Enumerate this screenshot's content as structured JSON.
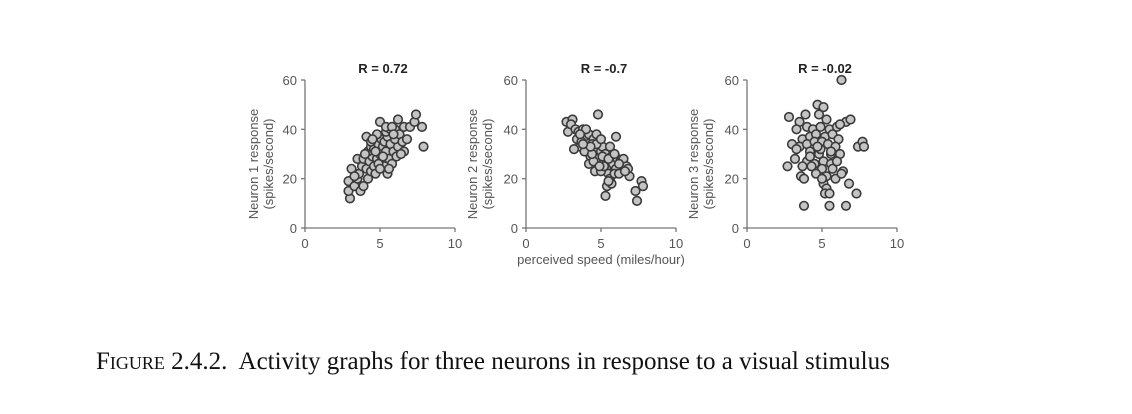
{
  "caption": {
    "figure_label": "Figure 2.4.2.",
    "text": "Activity graphs for three neurons in response to a visual stimulus"
  },
  "colors": {
    "point_fill": "#c4c4c4",
    "point_stroke": "#3a3a3a",
    "axis": "#777777",
    "tick_text": "#555555",
    "title_text": "#222222"
  },
  "chart_data": [
    {
      "type": "scatter",
      "title": "R = 0.72",
      "xlabel": "",
      "ylabel": "Neuron 1 response",
      "ylabel_units": "(spikes/second)",
      "xlim": [
        0,
        10
      ],
      "ylim": [
        0,
        60
      ],
      "xticks": [
        0,
        5,
        10
      ],
      "yticks": [
        0,
        20,
        40,
        60
      ],
      "grid": false,
      "points": [
        [
          3.0,
          12
        ],
        [
          2.9,
          15
        ],
        [
          2.9,
          19
        ],
        [
          3.3,
          17
        ],
        [
          3.5,
          20
        ],
        [
          3.7,
          15
        ],
        [
          3.9,
          17
        ],
        [
          3.1,
          24
        ],
        [
          3.6,
          22
        ],
        [
          3.8,
          25
        ],
        [
          3.5,
          28
        ],
        [
          3.9,
          28
        ],
        [
          4.2,
          20
        ],
        [
          4.1,
          24
        ],
        [
          4.3,
          27
        ],
        [
          4.4,
          23
        ],
        [
          4.6,
          25
        ],
        [
          4.5,
          29
        ],
        [
          4.7,
          22
        ],
        [
          4.8,
          28
        ],
        [
          4.2,
          31
        ],
        [
          4.4,
          33
        ],
        [
          4.6,
          32
        ],
        [
          4.9,
          34
        ],
        [
          5.0,
          30
        ],
        [
          5.1,
          27
        ],
        [
          5.3,
          25
        ],
        [
          5.5,
          22
        ],
        [
          5.2,
          33
        ],
        [
          5.4,
          31
        ],
        [
          5.6,
          28
        ],
        [
          5.8,
          26
        ],
        [
          5.1,
          36
        ],
        [
          5.3,
          35
        ],
        [
          5.5,
          37
        ],
        [
          5.7,
          34
        ],
        [
          5.9,
          31
        ],
        [
          6.1,
          29
        ],
        [
          6.2,
          33
        ],
        [
          6.0,
          36
        ],
        [
          5.4,
          39
        ],
        [
          5.7,
          40
        ],
        [
          6.0,
          40
        ],
        [
          6.3,
          38
        ],
        [
          6.5,
          35
        ],
        [
          6.6,
          31
        ],
        [
          5.0,
          43
        ],
        [
          5.4,
          41
        ],
        [
          5.8,
          41
        ],
        [
          6.2,
          44
        ],
        [
          6.6,
          41
        ],
        [
          7.0,
          41
        ],
        [
          7.3,
          43
        ],
        [
          7.4,
          46
        ],
        [
          7.8,
          41
        ],
        [
          7.9,
          33
        ],
        [
          4.1,
          37
        ],
        [
          4.4,
          35
        ],
        [
          4.8,
          38
        ],
        [
          5.2,
          29
        ],
        [
          4.0,
          30
        ],
        [
          4.7,
          31
        ],
        [
          5.6,
          24
        ],
        [
          6.4,
          30
        ],
        [
          3.3,
          21
        ],
        [
          4.9,
          26
        ],
        [
          5.9,
          38
        ],
        [
          6.8,
          36
        ],
        [
          4.5,
          36
        ],
        [
          5.0,
          24
        ]
      ]
    },
    {
      "type": "scatter",
      "title": "R = -0.7",
      "xlabel": "perceived speed (miles/hour)",
      "ylabel": "Neuron 2 response",
      "ylabel_units": "(spikes/second)",
      "xlim": [
        0,
        10
      ],
      "ylim": [
        0,
        60
      ],
      "xticks": [
        0,
        5,
        10
      ],
      "yticks": [
        0,
        20,
        40,
        60
      ],
      "grid": false,
      "points": [
        [
          2.7,
          43
        ],
        [
          2.8,
          39
        ],
        [
          3.1,
          44
        ],
        [
          3.0,
          42
        ],
        [
          3.3,
          40
        ],
        [
          3.5,
          39
        ],
        [
          3.4,
          36
        ],
        [
          3.6,
          33
        ],
        [
          3.2,
          32
        ],
        [
          3.8,
          40
        ],
        [
          3.9,
          37
        ],
        [
          3.7,
          35
        ],
        [
          4.0,
          33
        ],
        [
          4.2,
          38
        ],
        [
          4.1,
          31
        ],
        [
          4.3,
          29
        ],
        [
          4.5,
          36
        ],
        [
          4.4,
          34
        ],
        [
          4.6,
          32
        ],
        [
          4.2,
          26
        ],
        [
          4.8,
          46
        ],
        [
          4.7,
          38
        ],
        [
          4.9,
          35
        ],
        [
          5.0,
          31
        ],
        [
          4.8,
          28
        ],
        [
          4.6,
          23
        ],
        [
          5.1,
          33
        ],
        [
          5.3,
          30
        ],
        [
          5.2,
          27
        ],
        [
          5.4,
          25
        ],
        [
          5.5,
          22
        ],
        [
          5.6,
          33
        ],
        [
          5.7,
          29
        ],
        [
          5.8,
          26
        ],
        [
          5.6,
          20
        ],
        [
          5.4,
          17
        ],
        [
          5.3,
          13
        ],
        [
          6.0,
          37
        ],
        [
          6.1,
          28
        ],
        [
          6.0,
          24
        ],
        [
          6.3,
          27
        ],
        [
          6.5,
          28
        ],
        [
          6.7,
          25
        ],
        [
          6.9,
          21
        ],
        [
          6.8,
          24
        ],
        [
          5.9,
          22
        ],
        [
          7.3,
          15
        ],
        [
          7.4,
          11
        ],
        [
          7.7,
          19
        ],
        [
          7.8,
          17
        ],
        [
          3.9,
          31
        ],
        [
          4.5,
          27
        ],
        [
          5.0,
          23
        ],
        [
          5.7,
          18
        ],
        [
          6.2,
          22
        ],
        [
          4.0,
          40
        ],
        [
          4.4,
          30
        ],
        [
          5.1,
          29
        ],
        [
          5.5,
          28
        ],
        [
          6.6,
          23
        ],
        [
          3.6,
          38
        ],
        [
          4.7,
          34
        ],
        [
          5.2,
          25
        ],
        [
          5.9,
          30
        ],
        [
          4.3,
          33
        ],
        [
          5.0,
          36
        ],
        [
          6.2,
          26
        ],
        [
          5.5,
          19
        ],
        [
          4.9,
          25
        ],
        [
          3.8,
          34
        ]
      ]
    },
    {
      "type": "scatter",
      "title": "R = -0.02",
      "xlabel": "",
      "ylabel": "Neuron 3 response",
      "ylabel_units": "(spikes/second)",
      "xlim": [
        0,
        10
      ],
      "ylim": [
        0,
        60
      ],
      "xticks": [
        0,
        5,
        10
      ],
      "yticks": [
        0,
        20,
        40,
        60
      ],
      "grid": false,
      "points": [
        [
          6.3,
          60
        ],
        [
          4.7,
          50
        ],
        [
          5.1,
          49
        ],
        [
          4.8,
          46
        ],
        [
          3.9,
          46
        ],
        [
          2.8,
          45
        ],
        [
          3.5,
          43
        ],
        [
          5.3,
          44
        ],
        [
          6.6,
          43
        ],
        [
          6.9,
          44
        ],
        [
          3.3,
          40
        ],
        [
          4.0,
          41
        ],
        [
          4.4,
          40
        ],
        [
          4.9,
          41
        ],
        [
          5.5,
          40
        ],
        [
          6.0,
          41
        ],
        [
          6.2,
          42
        ],
        [
          3.7,
          36
        ],
        [
          4.2,
          37
        ],
        [
          4.6,
          38
        ],
        [
          5.2,
          37
        ],
        [
          5.7,
          38
        ],
        [
          6.1,
          36
        ],
        [
          3.0,
          34
        ],
        [
          3.5,
          33
        ],
        [
          4.0,
          34
        ],
        [
          4.5,
          35
        ],
        [
          5.0,
          35
        ],
        [
          5.4,
          34
        ],
        [
          5.9,
          33
        ],
        [
          7.4,
          33
        ],
        [
          7.7,
          35
        ],
        [
          7.8,
          33
        ],
        [
          3.3,
          32
        ],
        [
          4.2,
          31
        ],
        [
          4.8,
          30
        ],
        [
          5.6,
          30
        ],
        [
          6.2,
          30
        ],
        [
          3.2,
          28
        ],
        [
          4.0,
          27
        ],
        [
          4.5,
          26
        ],
        [
          5.1,
          27
        ],
        [
          5.6,
          26
        ],
        [
          2.7,
          25
        ],
        [
          3.7,
          25
        ],
        [
          4.3,
          25
        ],
        [
          5.0,
          24
        ],
        [
          5.7,
          24
        ],
        [
          6.4,
          23
        ],
        [
          3.6,
          21
        ],
        [
          3.8,
          20
        ],
        [
          4.6,
          22
        ],
        [
          5.3,
          21
        ],
        [
          5.9,
          20
        ],
        [
          6.3,
          22
        ],
        [
          5.1,
          18
        ],
        [
          5.3,
          16
        ],
        [
          5.2,
          14
        ],
        [
          5.5,
          14
        ],
        [
          6.8,
          18
        ],
        [
          7.3,
          14
        ],
        [
          3.8,
          9
        ],
        [
          5.5,
          9
        ],
        [
          6.6,
          9
        ],
        [
          4.9,
          32
        ],
        [
          5.6,
          31
        ],
        [
          4.2,
          29
        ],
        [
          5.0,
          20
        ],
        [
          6.0,
          27
        ],
        [
          4.7,
          33
        ]
      ]
    }
  ]
}
